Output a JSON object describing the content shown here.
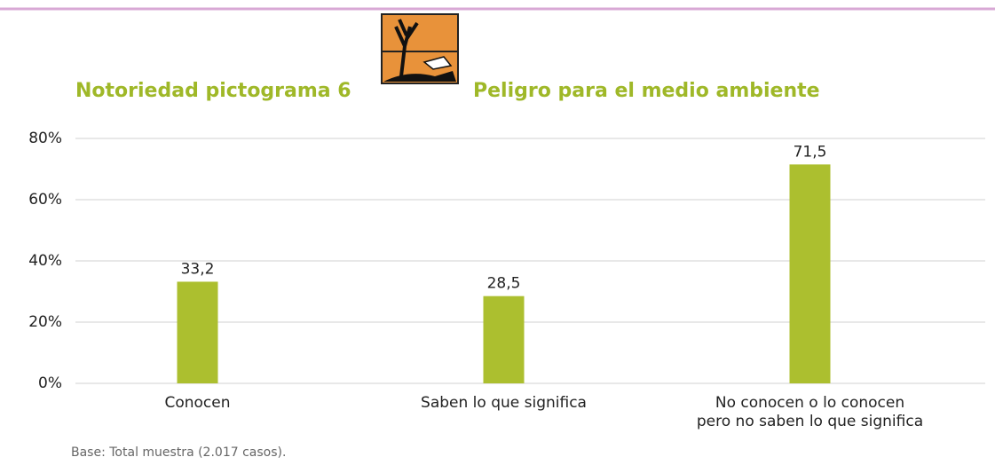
{
  "chart_data": {
    "type": "bar",
    "title": "Notoriedad pictograma 6",
    "subtitle": "Peligro para el medio ambiente",
    "categories": [
      "Conocen",
      "Saben lo que significa",
      "No conocen o lo conocen\npero no saben lo que significa"
    ],
    "values": [
      33.2,
      28.5,
      71.5
    ],
    "value_labels": [
      "33,2",
      "28,5",
      "71,5"
    ],
    "color": "#acbf2f",
    "ylim": [
      0,
      80
    ],
    "yticks": [
      {
        "value": 0,
        "label": "0%"
      },
      {
        "value": 20,
        "label": "20%"
      },
      {
        "value": 40,
        "label": "40%"
      },
      {
        "value": 60,
        "label": "60%"
      },
      {
        "value": 80,
        "label": "80%"
      }
    ],
    "grid": true,
    "note": "Base: Total muestra (2.017 casos)."
  }
}
